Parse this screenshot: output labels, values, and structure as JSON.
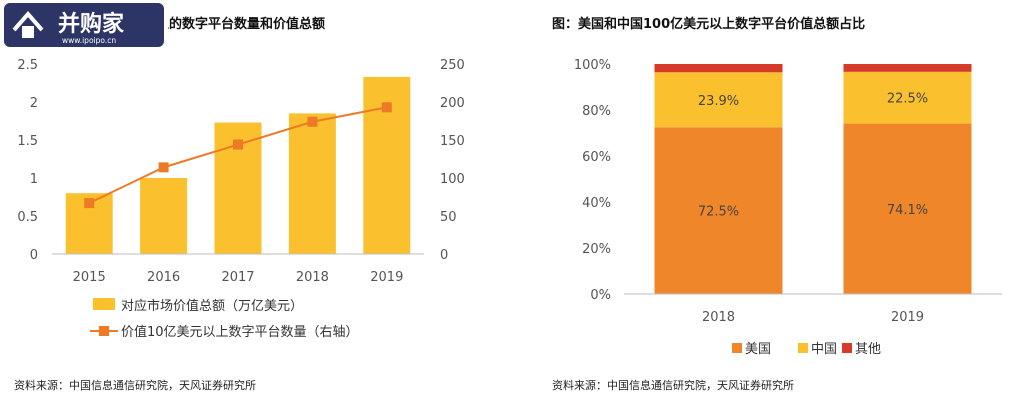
{
  "logo": {
    "brand": "并购家",
    "url": "www.ipoipo.cn"
  },
  "left_chart": {
    "title": "元以上的数字平台数量和价值总额",
    "source": "资料来源：中国信息通信研究院，天风证券研究所",
    "bar_color": "#FBC02D",
    "line_color": "#EE7A25",
    "chart_data": {
      "type": "bar",
      "categories": [
        "2015",
        "2016",
        "2017",
        "2018",
        "2019"
      ],
      "series": [
        {
          "name": "对应市场价值总额（万亿美元）",
          "type": "bar",
          "axis": "left",
          "values": [
            0.8,
            1.0,
            1.73,
            1.85,
            2.33
          ]
        },
        {
          "name": "价值10亿美元以上数字平台数量（右轴）",
          "type": "line",
          "axis": "right",
          "values": [
            67,
            114,
            144,
            174,
            193
          ]
        }
      ],
      "ylim_left": [
        0,
        2.5
      ],
      "yticks_left": [
        "0",
        "0.5",
        "1",
        "1.5",
        "2",
        "2.5"
      ],
      "ylim_right": [
        0,
        250
      ],
      "yticks_right": [
        "0",
        "50",
        "100",
        "150",
        "200",
        "250"
      ],
      "legend": "bottom"
    }
  },
  "right_chart": {
    "title": "图：美国和中国100亿美元以上数字平台价值总额占比",
    "source": "资料来源：中国信息通信研究院，天风证券研究所",
    "colors": {
      "美国": "#F0862A",
      "中国": "#FBC02D",
      "其他": "#D63A28"
    },
    "chart_data": {
      "type": "bar",
      "stacked": true,
      "categories": [
        "2018",
        "2019"
      ],
      "series": [
        {
          "name": "美国",
          "values": [
            72.5,
            74.1
          ],
          "labels": [
            "72.5%",
            "74.1%"
          ]
        },
        {
          "name": "中国",
          "values": [
            23.9,
            22.5
          ],
          "labels": [
            "23.9%",
            "22.5%"
          ]
        },
        {
          "name": "其他",
          "values": [
            3.6,
            3.4
          ]
        }
      ],
      "ylim": [
        0,
        100
      ],
      "yticks": [
        "0%",
        "20%",
        "40%",
        "60%",
        "80%",
        "100%"
      ],
      "legend": "bottom"
    }
  }
}
